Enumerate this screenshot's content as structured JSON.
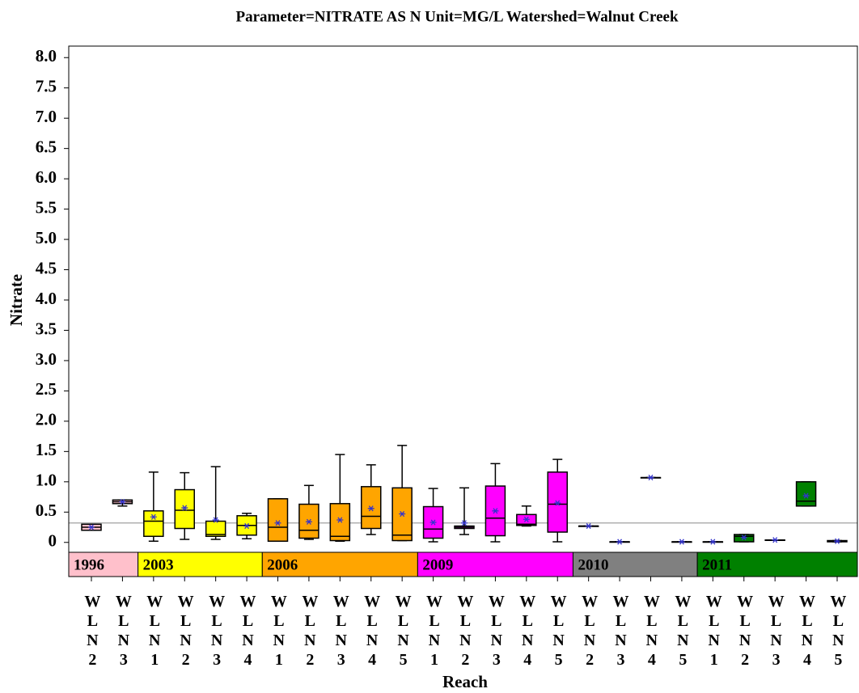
{
  "chart_data": {
    "type": "box",
    "title": "Parameter=NITRATE  AS  N  Unit=MG/L  Watershed=Walnut  Creek",
    "y_label": "Nitrate",
    "x_label": "Reach",
    "ylim": [
      -0.15,
      8.19
    ],
    "yticks": [
      0,
      0.5,
      {
        "value": 1,
        "label": "1.0"
      },
      1.5,
      {
        "value": 2,
        "label": "2.0"
      },
      2.5,
      {
        "value": 3,
        "label": "3.0"
      },
      3.5,
      {
        "value": 4,
        "label": "4.0"
      },
      4.5,
      {
        "value": 5,
        "label": "5.0"
      },
      5.5,
      {
        "value": 6,
        "label": "6.0"
      },
      6.5,
      {
        "value": 7,
        "label": "7.0"
      },
      7.5,
      {
        "value": 8,
        "label": "8.0"
      }
    ],
    "reference_line": 0.32,
    "reference_color": "#a0a0a0",
    "mean_color": "#3333cc",
    "groups": [
      {
        "name": "1996",
        "color": "#ffc0cb",
        "reaches": [
          {
            "label": "WLN2",
            "low": 0.2,
            "q1": 0.2,
            "median": 0.25,
            "q3": 0.3,
            "high": 0.3,
            "mean": 0.25
          },
          {
            "label": "WLN3",
            "low": 0.6,
            "q1": 0.64,
            "median": 0.67,
            "q3": 0.7,
            "high": 0.7,
            "mean": 0.67
          }
        ]
      },
      {
        "name": "2003",
        "color": "#ffff00",
        "reaches": [
          {
            "label": "WLN1",
            "low": 0.02,
            "q1": 0.1,
            "median": 0.35,
            "q3": 0.52,
            "high": 1.16,
            "mean": 0.42
          },
          {
            "label": "WLN2",
            "low": 0.05,
            "q1": 0.23,
            "median": 0.53,
            "q3": 0.87,
            "high": 1.15,
            "mean": 0.57
          },
          {
            "label": "WLN3",
            "low": 0.05,
            "q1": 0.1,
            "median": 0.13,
            "q3": 0.35,
            "high": 1.25,
            "mean": 0.37
          },
          {
            "label": "WLN4",
            "low": 0.06,
            "q1": 0.12,
            "median": 0.28,
            "q3": 0.44,
            "high": 0.48,
            "mean": 0.27
          }
        ]
      },
      {
        "name": "2006",
        "color": "#ffa500",
        "reaches": [
          {
            "label": "WLN1",
            "low": 0.02,
            "q1": 0.02,
            "median": 0.25,
            "q3": 0.72,
            "high": 0.72,
            "mean": 0.32
          },
          {
            "label": "WLN2",
            "low": 0.05,
            "q1": 0.07,
            "median": 0.2,
            "q3": 0.63,
            "high": 0.94,
            "mean": 0.34
          },
          {
            "label": "WLN3",
            "low": 0.02,
            "q1": 0.03,
            "median": 0.1,
            "q3": 0.64,
            "high": 1.45,
            "mean": 0.37
          },
          {
            "label": "WLN4",
            "low": 0.13,
            "q1": 0.23,
            "median": 0.43,
            "q3": 0.92,
            "high": 1.28,
            "mean": 0.56
          },
          {
            "label": "WLN5",
            "low": 0.03,
            "q1": 0.03,
            "median": 0.12,
            "q3": 0.9,
            "high": 1.6,
            "mean": 0.47
          }
        ]
      },
      {
        "name": "2009",
        "color": "#ff00ff",
        "reaches": [
          {
            "label": "WLN1",
            "low": 0.01,
            "q1": 0.07,
            "median": 0.22,
            "q3": 0.59,
            "high": 0.89,
            "mean": 0.33
          },
          {
            "label": "WLN2",
            "low": 0.13,
            "q1": 0.23,
            "median": 0.25,
            "q3": 0.27,
            "high": 0.9,
            "mean": 0.32
          },
          {
            "label": "WLN3",
            "low": 0.01,
            "q1": 0.11,
            "median": 0.4,
            "q3": 0.93,
            "high": 1.3,
            "mean": 0.52
          },
          {
            "label": "WLN4",
            "low": 0.27,
            "q1": 0.28,
            "median": 0.3,
            "q3": 0.46,
            "high": 0.6,
            "mean": 0.38
          },
          {
            "label": "WLN5",
            "low": 0.01,
            "q1": 0.17,
            "median": 0.63,
            "q3": 1.16,
            "high": 1.37,
            "mean": 0.65
          }
        ]
      },
      {
        "name": "2010",
        "color": "#808080",
        "reaches": [
          {
            "label": "WLN2",
            "low": 0.27,
            "q1": 0.27,
            "median": 0.27,
            "q3": 0.27,
            "high": 0.27,
            "mean": 0.27
          },
          {
            "label": "WLN3",
            "low": 0.01,
            "q1": 0.01,
            "median": 0.01,
            "q3": 0.01,
            "high": 0.01,
            "mean": 0.01
          },
          {
            "label": "WLN4",
            "low": 1.07,
            "q1": 1.07,
            "median": 1.07,
            "q3": 1.07,
            "high": 1.07,
            "mean": 1.07
          },
          {
            "label": "WLN5",
            "low": 0.01,
            "q1": 0.01,
            "median": 0.01,
            "q3": 0.01,
            "high": 0.01,
            "mean": 0.01
          }
        ]
      },
      {
        "name": "2011",
        "color": "#008000",
        "reaches": [
          {
            "label": "WLN1",
            "low": 0.01,
            "q1": 0.01,
            "median": 0.01,
            "q3": 0.01,
            "high": 0.01,
            "mean": 0.01
          },
          {
            "label": "WLN2",
            "low": 0.01,
            "q1": 0.01,
            "median": 0.1,
            "q3": 0.13,
            "high": 0.13,
            "mean": 0.08
          },
          {
            "label": "WLN3",
            "low": 0.04,
            "q1": 0.04,
            "median": 0.04,
            "q3": 0.04,
            "high": 0.04,
            "mean": 0.04
          },
          {
            "label": "WLN4",
            "low": 0.6,
            "q1": 0.6,
            "median": 0.68,
            "q3": 1.0,
            "high": 1.0,
            "mean": 0.77
          },
          {
            "label": "WLN5",
            "low": 0.01,
            "q1": 0.01,
            "median": 0.02,
            "q3": 0.03,
            "high": 0.03,
            "mean": 0.02
          }
        ]
      }
    ]
  }
}
